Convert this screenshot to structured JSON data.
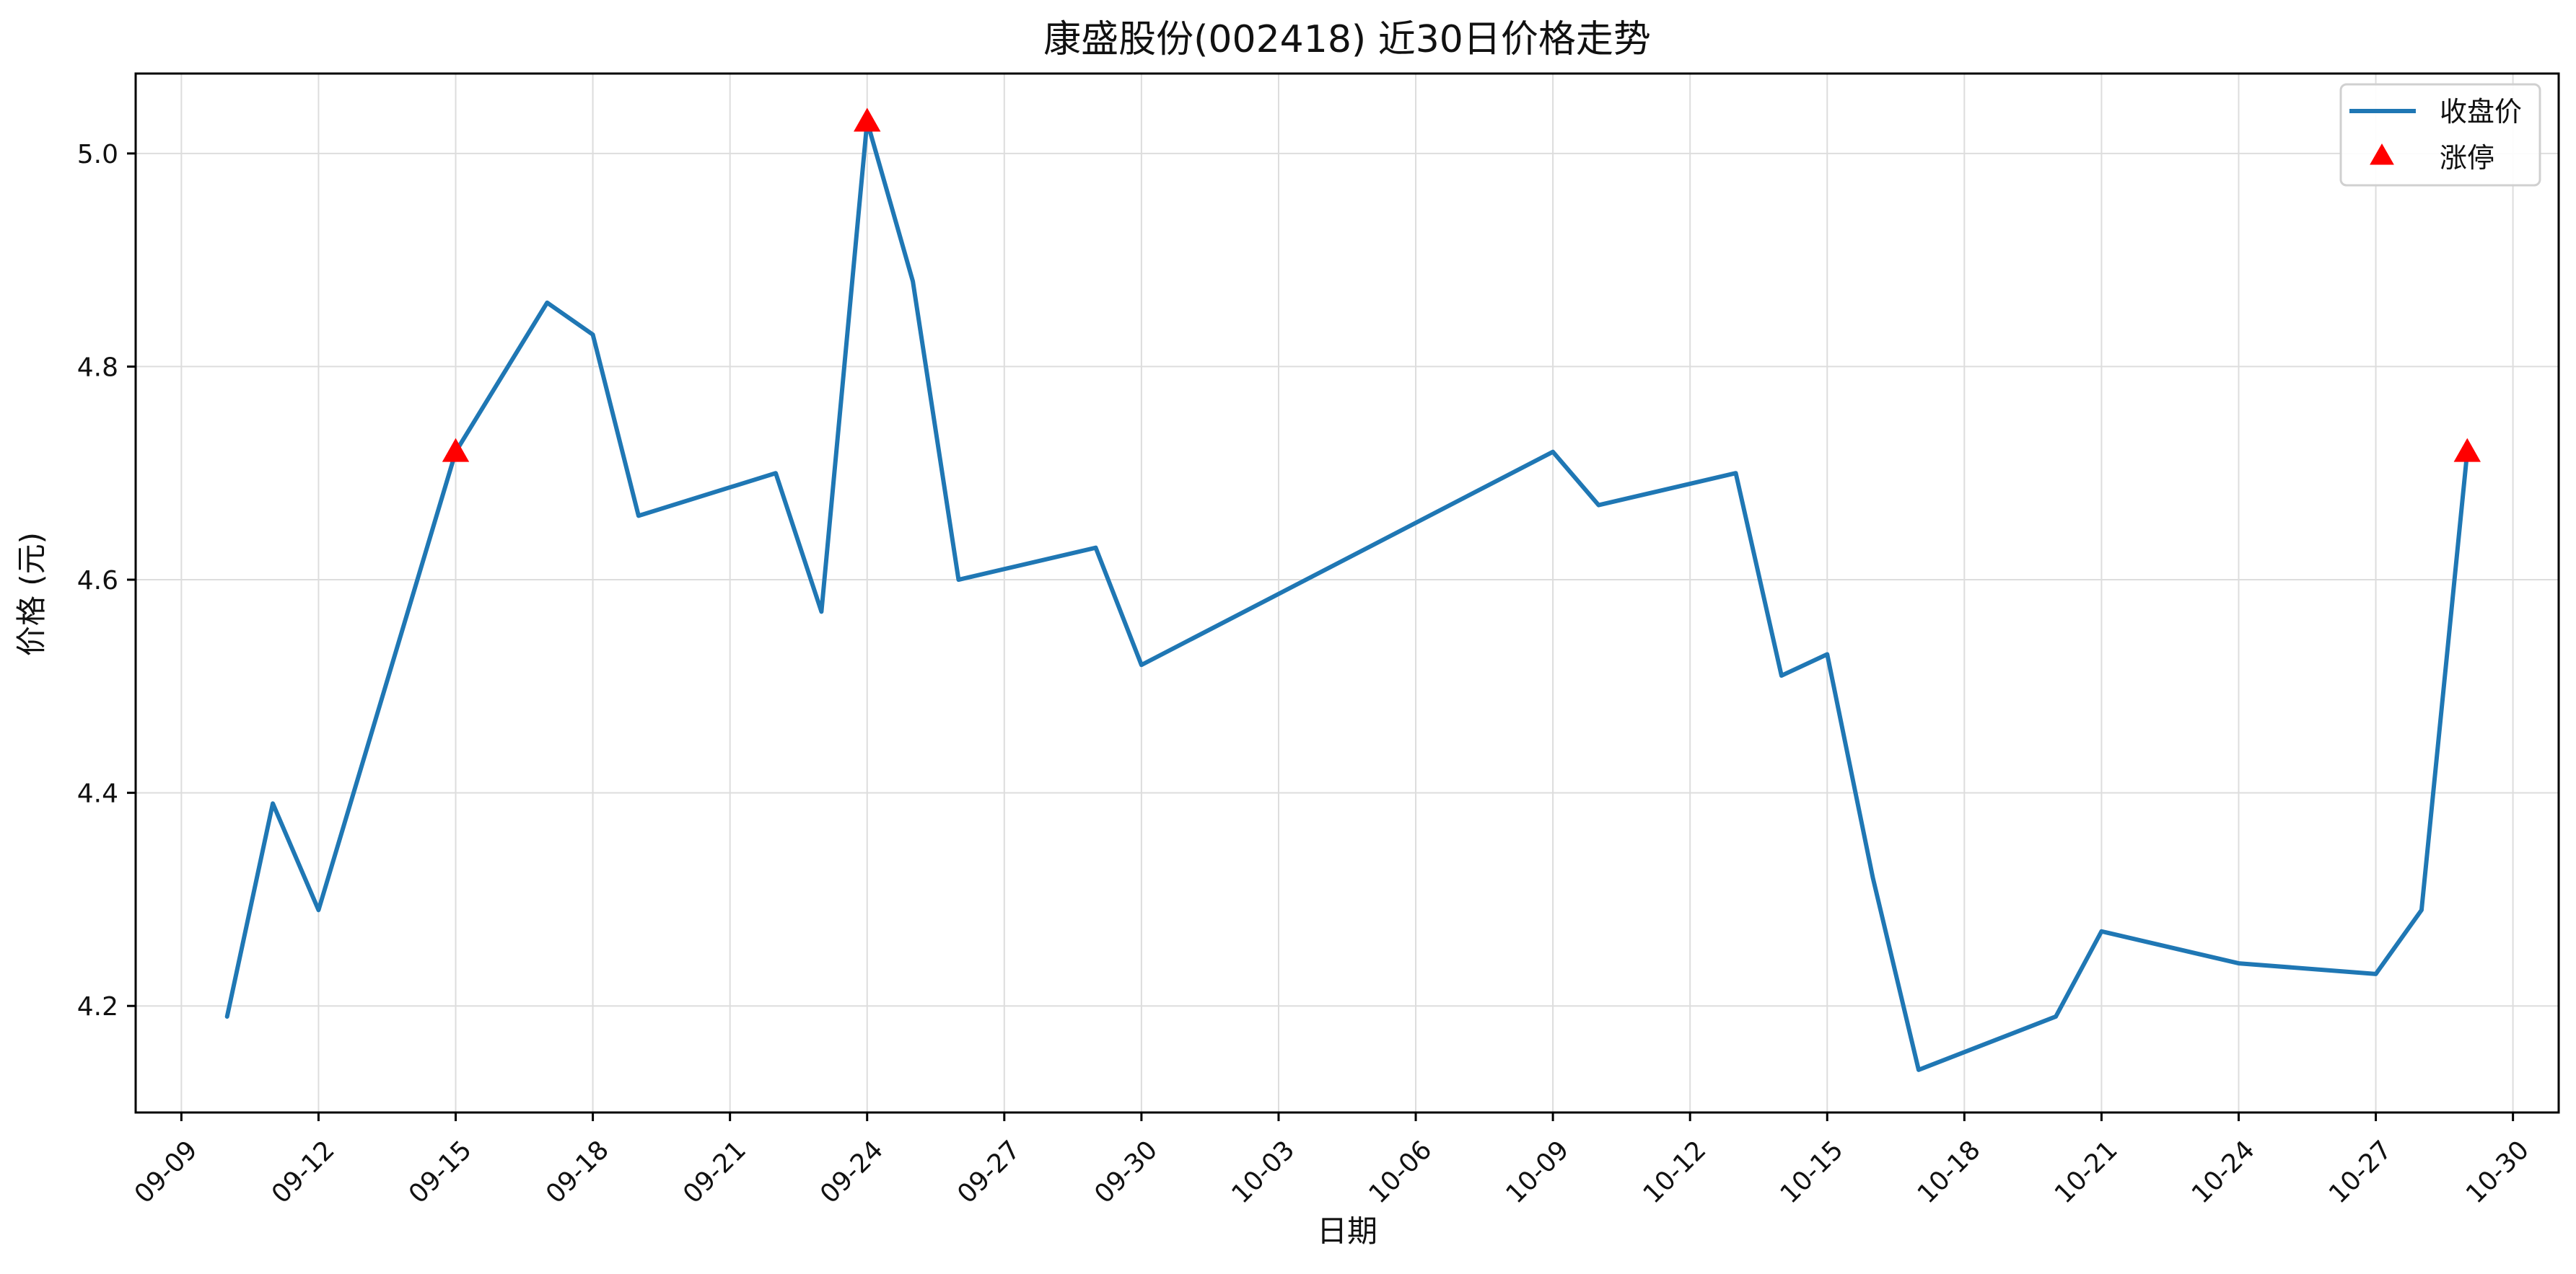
{
  "chart_data": {
    "type": "line",
    "title": "康盛股份(002418) 近30日价格走势",
    "xlabel": "日期",
    "ylabel": "价格 (元)",
    "x_tick_labels": [
      "09-09",
      "09-12",
      "09-15",
      "09-18",
      "09-21",
      "09-24",
      "09-27",
      "09-30",
      "10-03",
      "10-06",
      "10-09",
      "10-12",
      "10-15",
      "10-18",
      "10-21",
      "10-24",
      "10-27",
      "10-30"
    ],
    "y_tick_labels": [
      "4.2",
      "4.4",
      "4.6",
      "4.8",
      "5.0"
    ],
    "xlim": [
      "09-08",
      "10-31"
    ],
    "ylim": [
      4.1,
      5.075
    ],
    "grid": true,
    "legend_position": "top-right",
    "series": [
      {
        "name": "收盘价",
        "kind": "line",
        "color": "#1f77b4",
        "x": [
          "09-10",
          "09-11",
          "09-12",
          "09-15",
          "09-17",
          "09-18",
          "09-19",
          "09-22",
          "09-23",
          "09-24",
          "09-25",
          "09-26",
          "09-29",
          "09-30",
          "10-09",
          "10-10",
          "10-13",
          "10-14",
          "10-15",
          "10-16",
          "10-17",
          "10-20",
          "10-21",
          "10-24",
          "10-27",
          "10-28",
          "10-29"
        ],
        "y": [
          4.19,
          4.39,
          4.29,
          4.72,
          4.86,
          4.83,
          4.66,
          4.7,
          4.57,
          5.03,
          4.88,
          4.6,
          4.63,
          4.52,
          4.72,
          4.67,
          4.7,
          4.51,
          4.53,
          4.32,
          4.14,
          4.19,
          4.27,
          4.24,
          4.23,
          4.29,
          4.72
        ]
      },
      {
        "name": "涨停",
        "kind": "marker",
        "marker": "triangle-up",
        "color": "#ff0000",
        "x": [
          "09-15",
          "09-24",
          "10-29"
        ],
        "y": [
          4.72,
          5.03,
          4.72
        ]
      }
    ]
  }
}
